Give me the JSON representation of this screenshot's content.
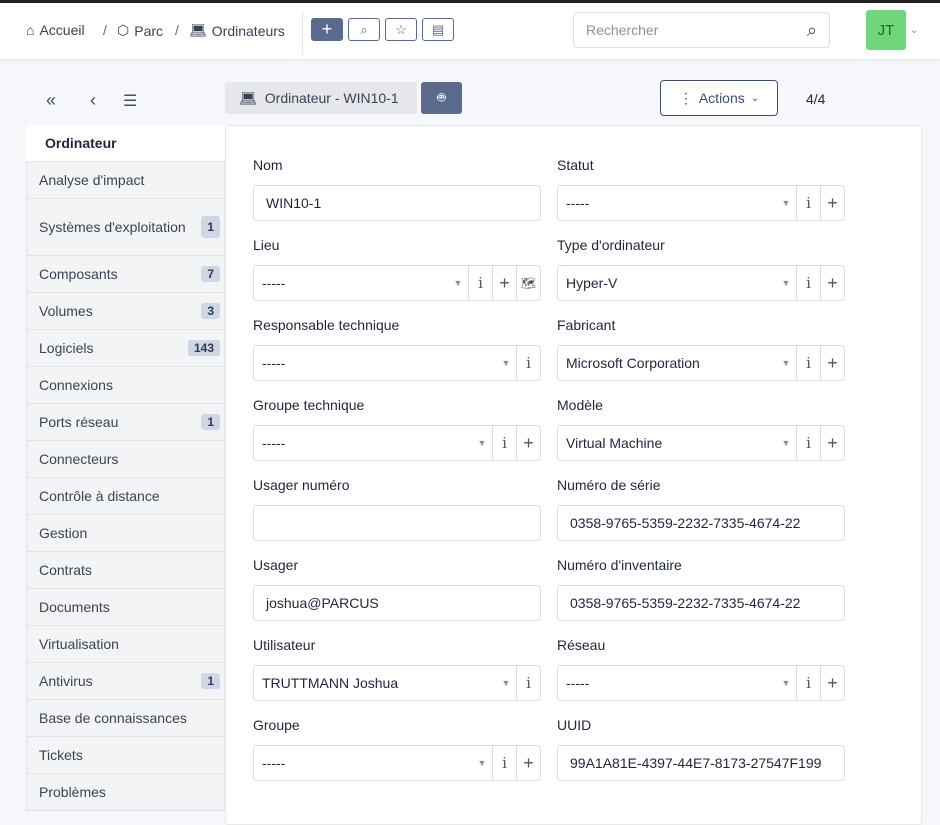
{
  "breadcrumb": [
    {
      "label": "Accueil",
      "icon": "home-icon"
    },
    {
      "label": "Parc",
      "icon": "box-icon"
    },
    {
      "label": "Ordinateurs",
      "icon": "laptop-icon"
    }
  ],
  "search": {
    "placeholder": "Rechercher"
  },
  "user": {
    "initials": "JT"
  },
  "item": {
    "title": "Ordinateur - WIN10-1",
    "actions_label": "Actions",
    "counter": "4/4"
  },
  "tabs": [
    {
      "label": "Ordinateur",
      "badge": ""
    },
    {
      "label": "Analyse d'impact",
      "badge": ""
    },
    {
      "label": "Systèmes d'exploitation",
      "badge": "1"
    },
    {
      "label": "Composants",
      "badge": "7"
    },
    {
      "label": "Volumes",
      "badge": "3"
    },
    {
      "label": "Logiciels",
      "badge": "143"
    },
    {
      "label": "Connexions",
      "badge": ""
    },
    {
      "label": "Ports réseau",
      "badge": "1"
    },
    {
      "label": "Connecteurs",
      "badge": ""
    },
    {
      "label": "Contrôle à distance",
      "badge": ""
    },
    {
      "label": "Gestion",
      "badge": ""
    },
    {
      "label": "Contrats",
      "badge": ""
    },
    {
      "label": "Documents",
      "badge": ""
    },
    {
      "label": "Virtualisation",
      "badge": ""
    },
    {
      "label": "Antivirus",
      "badge": "1"
    },
    {
      "label": "Base de connaissances",
      "badge": ""
    },
    {
      "label": "Tickets",
      "badge": ""
    },
    {
      "label": "Problèmes",
      "badge": ""
    }
  ],
  "fields_left": [
    {
      "label": "Nom",
      "value": "WIN10-1",
      "type": "text",
      "addons": []
    },
    {
      "label": "Lieu",
      "value": "-----",
      "type": "select",
      "addons": [
        "i",
        "+",
        "map"
      ]
    },
    {
      "label": "Responsable technique",
      "value": "-----",
      "type": "select",
      "addons": [
        "i"
      ]
    },
    {
      "label": "Groupe technique",
      "value": "-----",
      "type": "select",
      "addons": [
        "i",
        "+"
      ]
    },
    {
      "label": "Usager numéro",
      "value": "",
      "type": "text",
      "addons": []
    },
    {
      "label": "Usager",
      "value": "joshua@PARCUS",
      "type": "text",
      "addons": []
    },
    {
      "label": "Utilisateur",
      "value": "TRUTTMANN Joshua",
      "type": "select",
      "addons": [
        "i"
      ]
    },
    {
      "label": "Groupe",
      "value": "-----",
      "type": "select",
      "addons": [
        "i",
        "+"
      ]
    }
  ],
  "fields_right": [
    {
      "label": "Statut",
      "value": "-----",
      "type": "select",
      "addons": [
        "i",
        "+"
      ]
    },
    {
      "label": "Type d'ordinateur",
      "value": "Hyper-V",
      "type": "select",
      "addons": [
        "i",
        "+"
      ]
    },
    {
      "label": "Fabricant",
      "value": "Microsoft Corporation",
      "type": "select",
      "addons": [
        "i",
        "+"
      ]
    },
    {
      "label": "Modèle",
      "value": "Virtual Machine",
      "type": "select",
      "addons": [
        "i",
        "+"
      ]
    },
    {
      "label": "Numéro de série",
      "value": "0358-9765-5359-2232-7335-4674-22",
      "type": "text",
      "addons": []
    },
    {
      "label": "Numéro d'inventaire",
      "value": "0358-9765-5359-2232-7335-4674-22",
      "type": "text",
      "addons": []
    },
    {
      "label": "Réseau",
      "value": "-----",
      "type": "select",
      "addons": [
        "i",
        "+"
      ]
    },
    {
      "label": "UUID",
      "value": "99A1A81E-4397-44E7-8173-27547F199",
      "type": "text",
      "addons": []
    }
  ],
  "colors": {
    "primary": "#5a6a8c",
    "avatar": "#6fd67a"
  }
}
